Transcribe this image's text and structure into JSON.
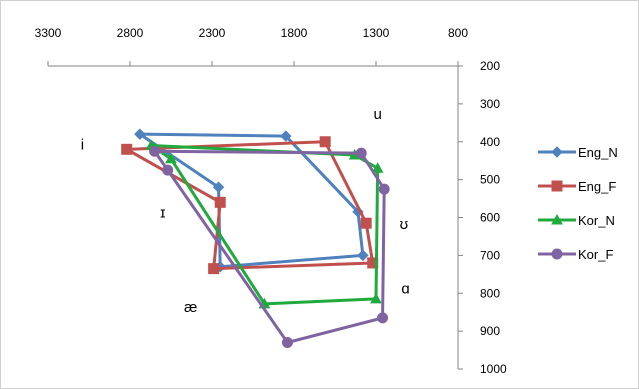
{
  "chart_data": {
    "type": "line",
    "title": "",
    "xlabel": "",
    "ylabel": "",
    "x_axis": {
      "min": 800,
      "max": 3300,
      "reversed": true,
      "position": "top",
      "ticks": [
        3300,
        2800,
        2300,
        1800,
        1300,
        800
      ]
    },
    "y_axis": {
      "min": 200,
      "max": 1000,
      "reversed": true,
      "position": "right",
      "ticks": [
        200,
        300,
        400,
        500,
        600,
        700,
        800,
        900,
        1000
      ]
    },
    "grid": false,
    "legend_position": "right",
    "series": [
      {
        "name": "Eng_N",
        "color": "#4F81BD",
        "marker": "diamond",
        "points": [
          [
            2740,
            380
          ],
          [
            1850,
            385
          ],
          [
            1410,
            585
          ],
          [
            1380,
            700
          ],
          [
            2250,
            730
          ],
          [
            2260,
            520
          ],
          [
            2740,
            380
          ]
        ]
      },
      {
        "name": "Eng_F",
        "color": "#C0504D",
        "marker": "square",
        "points": [
          [
            2820,
            420
          ],
          [
            1610,
            400
          ],
          [
            1360,
            615
          ],
          [
            1320,
            720
          ],
          [
            2290,
            735
          ],
          [
            2250,
            560
          ],
          [
            2820,
            420
          ]
        ]
      },
      {
        "name": "Kor_N",
        "color": "#1FAA3C",
        "marker": "triangle",
        "points": [
          [
            2670,
            410
          ],
          [
            1430,
            435
          ],
          [
            1290,
            470
          ],
          [
            1300,
            815
          ],
          [
            1980,
            828
          ],
          [
            2550,
            445
          ],
          [
            2670,
            410
          ]
        ]
      },
      {
        "name": "Kor_F",
        "color": "#8064A2",
        "marker": "circle",
        "points": [
          [
            2650,
            425
          ],
          [
            1390,
            430
          ],
          [
            1250,
            525
          ],
          [
            1260,
            865
          ],
          [
            1840,
            930
          ],
          [
            2570,
            475
          ],
          [
            2650,
            425
          ]
        ]
      }
    ],
    "annotations": [
      {
        "text": "i",
        "x": 3090,
        "y": 420
      },
      {
        "text": "u",
        "x": 1290,
        "y": 340
      },
      {
        "text": "ɪ",
        "x": 2600,
        "y": 600
      },
      {
        "text": "ʊ",
        "x": 1130,
        "y": 630
      },
      {
        "text": "æ",
        "x": 2430,
        "y": 850
      },
      {
        "text": "ɑ",
        "x": 1120,
        "y": 800
      }
    ]
  }
}
